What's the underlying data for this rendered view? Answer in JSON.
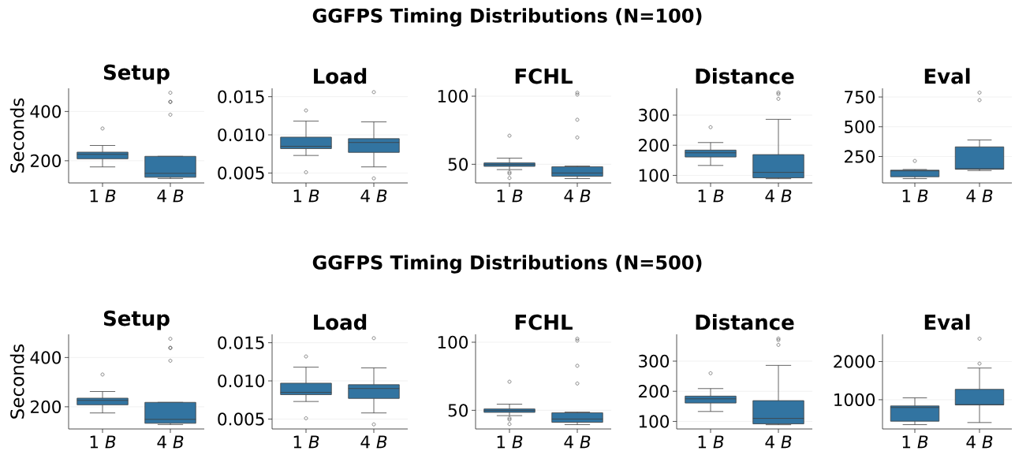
{
  "chart_data": [
    {
      "type": "box",
      "title": "Setup",
      "ylabel": "Seconds",
      "annotations": [
        "GGFPS Timing Distributions (N=100)"
      ],
      "categories": [
        "1 *B*",
        "4 *B*"
      ],
      "color": "#3274a1",
      "ylim": [
        110,
        494
      ],
      "yticks": [
        200,
        400
      ],
      "grid": "y",
      "boxes": [
        {
          "low": 175,
          "q1": 208,
          "median": 226,
          "q3": 235,
          "high": 262,
          "outliers": [
            331
          ]
        },
        {
          "low": 128,
          "q1": 133,
          "median": 149,
          "q3": 218,
          "high": 218,
          "outliers": [
            387,
            438,
            440,
            476
          ]
        }
      ]
    },
    {
      "type": "box",
      "title": "Load",
      "categories": [
        "1 *B*",
        "4 *B*"
      ],
      "color": "#3274a1",
      "ylim": [
        0.0037,
        0.0161
      ],
      "yticks": [
        0.005,
        {
          "value": 0.01,
          "label": "0.010"
        },
        0.015
      ],
      "grid": "y",
      "boxes": [
        {
          "low": 0.0073,
          "q1": 0.0082,
          "median": 0.0085,
          "q3": 0.0097,
          "high": 0.0118,
          "outliers": [
            0.0051,
            0.0132
          ]
        },
        {
          "low": 0.0058,
          "q1": 0.0077,
          "median": 0.009,
          "q3": 0.0095,
          "high": 0.0117,
          "outliers": [
            0.0043,
            0.0156
          ]
        }
      ]
    },
    {
      "type": "box",
      "title": "FCHL",
      "categories": [
        "1 *B*",
        "4 *B*"
      ],
      "color": "#3274a1",
      "ylim": [
        36.3,
        105.8
      ],
      "yticks": [
        50,
        100
      ],
      "grid": "y",
      "boxes": [
        {
          "low": 46.1,
          "q1": 48.5,
          "median": 49.8,
          "q3": 51,
          "high": 54.5,
          "outliers": [
            39.9,
            43.2,
            44.2,
            71
          ]
        },
        {
          "low": 39.5,
          "q1": 41.2,
          "median": 43.6,
          "q3": 48.2,
          "high": 48.7,
          "outliers": [
            69.7,
            82.7,
            101.2,
            102.6
          ]
        }
      ]
    },
    {
      "type": "box",
      "title": "Distance",
      "categories": [
        "1 *B*",
        "4 *B*"
      ],
      "color": "#3274a1",
      "ylim": [
        75,
        389
      ],
      "yticks": [
        100,
        200,
        300
      ],
      "grid": "y",
      "boxes": [
        {
          "low": 133,
          "q1": 161,
          "median": 175,
          "q3": 184,
          "high": 209,
          "outliers": [
            260
          ]
        },
        {
          "low": 89,
          "q1": 92,
          "median": 110,
          "q3": 169,
          "high": 286,
          "outliers": [
            354,
            370,
            375
          ]
        }
      ]
    },
    {
      "type": "box",
      "title": "Eval",
      "categories": [
        "1 *B*",
        "4 *B*"
      ],
      "color": "#3274a1",
      "ylim": [
        28,
        823
      ],
      "yticks": [
        250,
        500,
        750
      ],
      "grid": "y",
      "boxes": [
        {
          "low": 64,
          "q1": 80,
          "median": 130,
          "q3": 135,
          "high": 141,
          "outliers": [
            213
          ]
        },
        {
          "low": 132,
          "q1": 143,
          "median": 147,
          "q3": 331,
          "high": 389,
          "outliers": [
            724,
            787
          ]
        }
      ]
    },
    {
      "type": "box",
      "title": "Setup",
      "ylabel": "Seconds",
      "annotations": [
        "GGFPS Timing Distributions (N=500)"
      ],
      "categories": [
        "1 *B*",
        "4 *B*"
      ],
      "color": "#3274a1",
      "ylim": [
        110,
        494
      ],
      "yticks": [
        200,
        400
      ],
      "grid": "y",
      "boxes": [
        {
          "low": 175,
          "q1": 208,
          "median": 226,
          "q3": 235,
          "high": 262,
          "outliers": [
            331
          ]
        },
        {
          "low": 128,
          "q1": 133,
          "median": 149,
          "q3": 218,
          "high": 218,
          "outliers": [
            387,
            438,
            440,
            476
          ]
        }
      ]
    },
    {
      "type": "box",
      "title": "Load",
      "categories": [
        "1 *B*",
        "4 *B*"
      ],
      "color": "#3274a1",
      "ylim": [
        0.0037,
        0.0161
      ],
      "yticks": [
        0.005,
        {
          "value": 0.01,
          "label": "0.010"
        },
        0.015
      ],
      "grid": "y",
      "boxes": [
        {
          "low": 0.0073,
          "q1": 0.0082,
          "median": 0.0085,
          "q3": 0.0097,
          "high": 0.0118,
          "outliers": [
            0.0051,
            0.0132
          ]
        },
        {
          "low": 0.0058,
          "q1": 0.0077,
          "median": 0.009,
          "q3": 0.0095,
          "high": 0.0117,
          "outliers": [
            0.0043,
            0.0156
          ]
        }
      ]
    },
    {
      "type": "box",
      "title": "FCHL",
      "categories": [
        "1 *B*",
        "4 *B*"
      ],
      "color": "#3274a1",
      "ylim": [
        36.3,
        105.8
      ],
      "yticks": [
        50,
        100
      ],
      "grid": "y",
      "boxes": [
        {
          "low": 46.1,
          "q1": 48.5,
          "median": 49.8,
          "q3": 51,
          "high": 54.5,
          "outliers": [
            39.9,
            43.2,
            44.2,
            71
          ]
        },
        {
          "low": 39.5,
          "q1": 41.2,
          "median": 43.6,
          "q3": 48.2,
          "high": 48.7,
          "outliers": [
            69.7,
            82.7,
            101.2,
            102.6
          ]
        }
      ]
    },
    {
      "type": "box",
      "title": "Distance",
      "categories": [
        "1 *B*",
        "4 *B*"
      ],
      "color": "#3274a1",
      "ylim": [
        75,
        389
      ],
      "yticks": [
        100,
        200,
        300
      ],
      "grid": "y",
      "boxes": [
        {
          "low": 133,
          "q1": 161,
          "median": 175,
          "q3": 184,
          "high": 209,
          "outliers": [
            260
          ]
        },
        {
          "low": 89,
          "q1": 92,
          "median": 110,
          "q3": 169,
          "high": 286,
          "outliers": [
            354,
            370,
            375
          ]
        }
      ]
    },
    {
      "type": "box",
      "title": "Eval",
      "categories": [
        "1 *B*",
        "4 *B*"
      ],
      "color": "#3274a1",
      "ylim": [
        234,
        2713
      ],
      "yticks": [
        1000,
        2000
      ],
      "grid": "y",
      "boxes": [
        {
          "low": 347,
          "q1": 437,
          "median": 796,
          "q3": 837,
          "high": 1049
        },
        {
          "low": 402,
          "q1": 865,
          "median": 871,
          "q3": 1273,
          "high": 1830,
          "outliers": [
            1947,
            2600
          ]
        }
      ]
    }
  ]
}
